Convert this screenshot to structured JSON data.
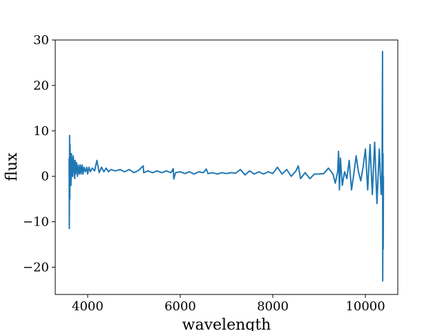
{
  "chart_data": {
    "type": "line",
    "title": "",
    "xlabel": "wavelength",
    "ylabel": "flux",
    "xlim": [
      3300,
      10700
    ],
    "ylim": [
      -26,
      30
    ],
    "xticks": [
      4000,
      6000,
      8000,
      10000
    ],
    "yticks": [
      -20,
      -10,
      0,
      10,
      20,
      30
    ],
    "ytick_labels": [
      "−20",
      "−10",
      "0",
      "10",
      "20",
      "30"
    ],
    "grid": false,
    "legend": "none",
    "series": [
      {
        "color": "#1f77b4",
        "x": [
          3600,
          3605,
          3610,
          3615,
          3620,
          3625,
          3630,
          3640,
          3650,
          3660,
          3670,
          3680,
          3690,
          3700,
          3710,
          3720,
          3730,
          3740,
          3760,
          3780,
          3800,
          3820,
          3840,
          3860,
          3880,
          3900,
          3920,
          3950,
          3980,
          4000,
          4030,
          4060,
          4100,
          4150,
          4200,
          4250,
          4300,
          4350,
          4400,
          4450,
          4500,
          4600,
          4700,
          4800,
          4900,
          5000,
          5100,
          5200,
          5210,
          5300,
          5400,
          5500,
          5600,
          5700,
          5800,
          5850,
          5860,
          5900,
          6000,
          6100,
          6200,
          6300,
          6400,
          6500,
          6563,
          6600,
          6700,
          6800,
          6900,
          7000,
          7100,
          7200,
          7300,
          7400,
          7500,
          7600,
          7700,
          7800,
          7900,
          8000,
          8100,
          8200,
          8300,
          8400,
          8500,
          8550,
          8600,
          8700,
          8800,
          8900,
          9000,
          9100,
          9200,
          9300,
          9350,
          9400,
          9420,
          9440,
          9460,
          9500,
          9550,
          9600,
          9650,
          9700,
          9750,
          9800,
          9850,
          9900,
          9950,
          10000,
          10050,
          10100,
          10150,
          10200,
          10250,
          10300,
          10340,
          10360,
          10370,
          10375,
          10380,
          10385,
          10390
        ],
        "y": [
          4,
          -11.5,
          9,
          -5,
          7,
          0.5,
          5,
          -2,
          5,
          0,
          4,
          0,
          4.5,
          1,
          3.5,
          -0.5,
          3.5,
          0.5,
          3,
          0,
          2.5,
          0.5,
          2.5,
          0.5,
          2.5,
          0.5,
          2,
          1,
          2,
          0.5,
          2,
          1,
          1.8,
          1.2,
          3.5,
          0.8,
          2,
          1,
          1.8,
          1,
          1.5,
          1.2,
          1.5,
          1,
          1.5,
          0.8,
          1.3,
          2.3,
          0.8,
          1.2,
          0.8,
          1.2,
          0.8,
          1.2,
          0.8,
          1.7,
          -0.6,
          0.8,
          1,
          0.6,
          1,
          0.5,
          1,
          0.8,
          1.6,
          0.6,
          0.8,
          0.5,
          0.8,
          0.6,
          0.8,
          0.7,
          1.5,
          0.3,
          1.2,
          0.5,
          1,
          0.5,
          1,
          0.6,
          2,
          0.5,
          1.5,
          0,
          1.2,
          2.3,
          -0.5,
          0.8,
          -0.5,
          0.5,
          0.5,
          0.6,
          1.8,
          0.5,
          -1.5,
          1,
          5.5,
          -3,
          4,
          -2,
          1,
          -0.5,
          3.5,
          -3,
          0.5,
          4.5,
          1,
          -1,
          2,
          6,
          -3,
          7,
          -4,
          7.5,
          -6,
          6,
          -4,
          1,
          27.5,
          -23,
          5,
          -16,
          0
        ]
      }
    ]
  }
}
